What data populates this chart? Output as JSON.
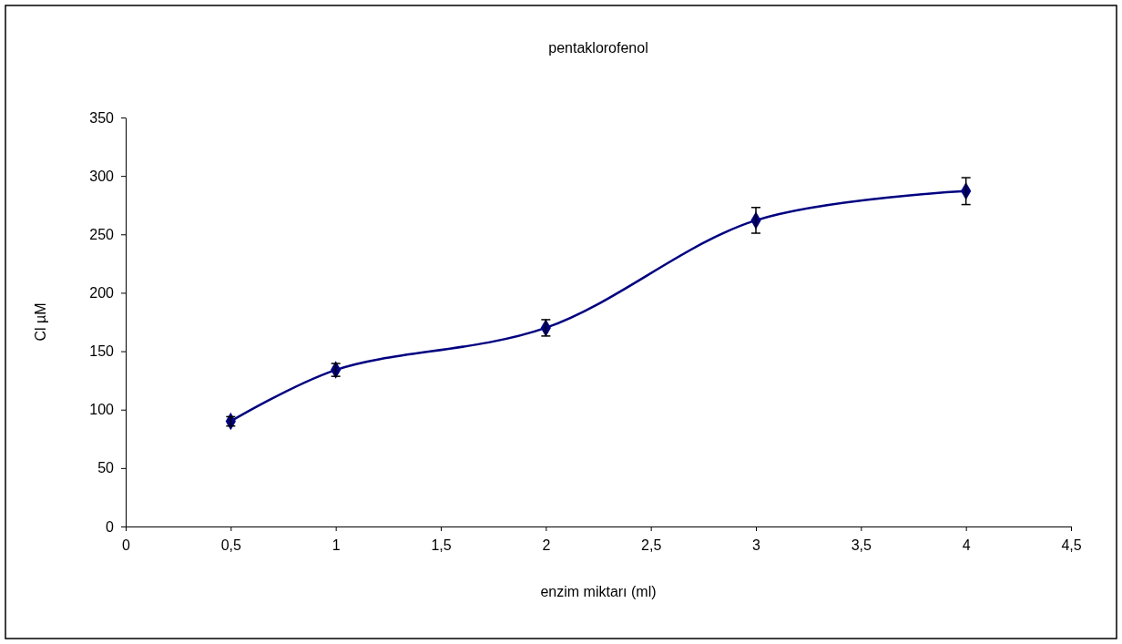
{
  "chart_data": {
    "type": "line",
    "title": "pentaklorofenol",
    "xlabel": "enzim miktarı (ml)",
    "ylabel": "Cl µM",
    "x": [
      0.5,
      1,
      2,
      3,
      4
    ],
    "series": [
      {
        "color": "#000080",
        "values": [
          90,
          134,
          170,
          262,
          287
        ],
        "errors": [
          4,
          5.5,
          7,
          11,
          11.5
        ]
      }
    ],
    "xlim": [
      0,
      4.5
    ],
    "xticks": [
      {
        "value": 0,
        "label": "0"
      },
      {
        "value": 0.5,
        "label": "0,5"
      },
      {
        "value": 1,
        "label": "1"
      },
      {
        "value": 1.5,
        "label": "1,5"
      },
      {
        "value": 2,
        "label": "2"
      },
      {
        "value": 2.5,
        "label": "2,5"
      },
      {
        "value": 3,
        "label": "3"
      },
      {
        "value": 3.5,
        "label": "3,5"
      },
      {
        "value": 4,
        "label": "4"
      },
      {
        "value": 4.5,
        "label": "4,5"
      }
    ],
    "ylim": [
      0,
      350
    ],
    "yticks": [
      0,
      50,
      100,
      150,
      200,
      250,
      300,
      350
    ],
    "marker": "diamond",
    "grid": false
  }
}
